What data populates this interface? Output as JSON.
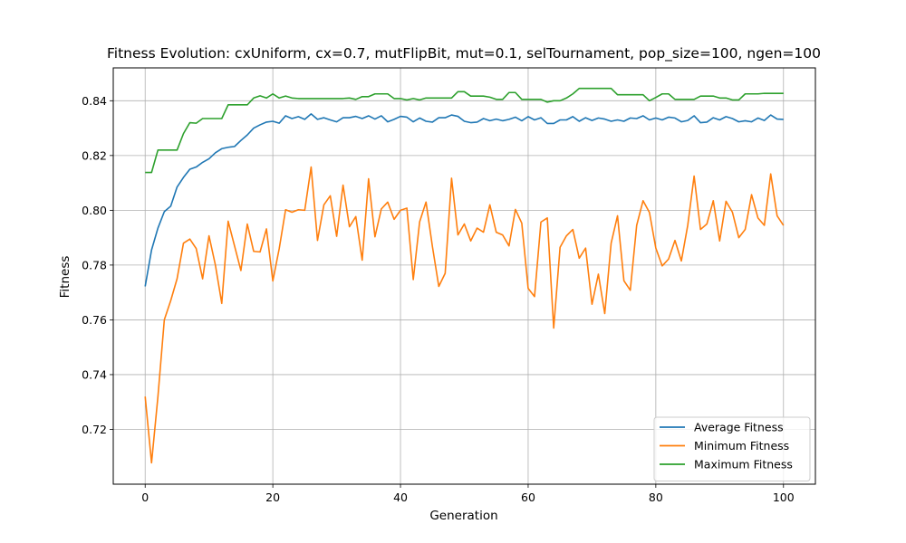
{
  "chart_data": {
    "type": "line",
    "title": "Fitness Evolution: cxUniform, cx=0.7, mutFlipBit, mut=0.1, selTournament, pop_size=100, ngen=100",
    "xlabel": "Generation",
    "ylabel": "Fitness",
    "xlim": [
      -5,
      105
    ],
    "ylim": [
      0.7,
      0.852
    ],
    "xticks": [
      0,
      20,
      40,
      60,
      80,
      100
    ],
    "yticks": [
      0.72,
      0.74,
      0.76,
      0.78,
      0.8,
      0.82,
      0.84
    ],
    "ytick_labels": [
      "0.72",
      "0.74",
      "0.76",
      "0.78",
      "0.80",
      "0.82",
      "0.84"
    ],
    "xtick_labels": [
      "0",
      "20",
      "40",
      "60",
      "80",
      "100"
    ],
    "grid": true,
    "legend_position": "lower-right",
    "x_start": 0,
    "series": [
      {
        "name": "Average Fitness",
        "color": "#1f77b4",
        "values": [
          0.7722,
          0.7855,
          0.7935,
          0.7995,
          0.8015,
          0.8085,
          0.812,
          0.815,
          0.8158,
          0.8175,
          0.8188,
          0.821,
          0.8225,
          0.823,
          0.8233,
          0.8255,
          0.8275,
          0.83,
          0.8312,
          0.8322,
          0.8325,
          0.8318,
          0.8345,
          0.8335,
          0.8342,
          0.8332,
          0.8352,
          0.8332,
          0.8338,
          0.833,
          0.8323,
          0.8338,
          0.8338,
          0.8343,
          0.8335,
          0.8345,
          0.8333,
          0.8345,
          0.8323,
          0.8332,
          0.8343,
          0.834,
          0.8323,
          0.8337,
          0.8325,
          0.8322,
          0.8338,
          0.8338,
          0.8348,
          0.8343,
          0.8325,
          0.832,
          0.8322,
          0.8335,
          0.8327,
          0.8333,
          0.8327,
          0.8332,
          0.834,
          0.8327,
          0.8342,
          0.833,
          0.8338,
          0.8317,
          0.8317,
          0.833,
          0.833,
          0.8342,
          0.8325,
          0.8338,
          0.8328,
          0.8337,
          0.8333,
          0.8325,
          0.833,
          0.8325,
          0.8337,
          0.8335,
          0.8345,
          0.833,
          0.8337,
          0.833,
          0.834,
          0.8337,
          0.8323,
          0.8328,
          0.8345,
          0.832,
          0.8322,
          0.8338,
          0.833,
          0.8342,
          0.8335,
          0.8323,
          0.8327,
          0.8323,
          0.8337,
          0.8328,
          0.8348,
          0.8333,
          0.8332
        ]
      },
      {
        "name": "Minimum Fitness",
        "color": "#ff7f0e",
        "values": [
          0.732,
          0.7078,
          0.732,
          0.76,
          0.767,
          0.775,
          0.788,
          0.7895,
          0.786,
          0.775,
          0.7907,
          0.78,
          0.766,
          0.796,
          0.787,
          0.778,
          0.795,
          0.785,
          0.7848,
          0.7932,
          0.7742,
          0.786,
          0.8002,
          0.7993,
          0.8002,
          0.8,
          0.8158,
          0.789,
          0.802,
          0.8053,
          0.7905,
          0.8092,
          0.794,
          0.7977,
          0.7818,
          0.8115,
          0.7903,
          0.8005,
          0.803,
          0.7967,
          0.8,
          0.8008,
          0.7747,
          0.7958,
          0.803,
          0.7868,
          0.7722,
          0.777,
          0.8117,
          0.791,
          0.795,
          0.7888,
          0.7935,
          0.792,
          0.802,
          0.792,
          0.791,
          0.787,
          0.8003,
          0.7953,
          0.7715,
          0.7685,
          0.7957,
          0.7972,
          0.757,
          0.7865,
          0.7907,
          0.793,
          0.7825,
          0.7862,
          0.7657,
          0.7767,
          0.7623,
          0.788,
          0.798,
          0.7743,
          0.7708,
          0.7945,
          0.8035,
          0.7992,
          0.7862,
          0.7797,
          0.7822,
          0.789,
          0.7815,
          0.7945,
          0.8125,
          0.793,
          0.795,
          0.8035,
          0.7888,
          0.8033,
          0.7993,
          0.79,
          0.793,
          0.8057,
          0.7972,
          0.7945,
          0.8133,
          0.798,
          0.7945
        ]
      },
      {
        "name": "Maximum Fitness",
        "color": "#2ca02c",
        "values": [
          0.8138,
          0.8138,
          0.822,
          0.822,
          0.822,
          0.822,
          0.828,
          0.832,
          0.8318,
          0.8335,
          0.8335,
          0.8335,
          0.8335,
          0.8385,
          0.8385,
          0.8385,
          0.8385,
          0.841,
          0.8418,
          0.841,
          0.8425,
          0.841,
          0.8417,
          0.841,
          0.8408,
          0.8408,
          0.8408,
          0.8408,
          0.8408,
          0.8408,
          0.8408,
          0.8408,
          0.841,
          0.8405,
          0.8415,
          0.8415,
          0.8425,
          0.8425,
          0.8425,
          0.8408,
          0.8408,
          0.8403,
          0.8408,
          0.8403,
          0.841,
          0.841,
          0.841,
          0.841,
          0.841,
          0.8433,
          0.8433,
          0.8417,
          0.8417,
          0.8417,
          0.8413,
          0.8405,
          0.8405,
          0.843,
          0.843,
          0.8405,
          0.8405,
          0.8405,
          0.8405,
          0.8395,
          0.84,
          0.84,
          0.841,
          0.8425,
          0.8445,
          0.8445,
          0.8445,
          0.8445,
          0.8445,
          0.8445,
          0.8422,
          0.8422,
          0.8422,
          0.8422,
          0.8422,
          0.84,
          0.8412,
          0.8425,
          0.8425,
          0.8405,
          0.8405,
          0.8405,
          0.8405,
          0.8417,
          0.8417,
          0.8417,
          0.841,
          0.841,
          0.8403,
          0.8403,
          0.8425,
          0.8425,
          0.8425,
          0.8427,
          0.8427,
          0.8427,
          0.8427
        ]
      }
    ]
  }
}
